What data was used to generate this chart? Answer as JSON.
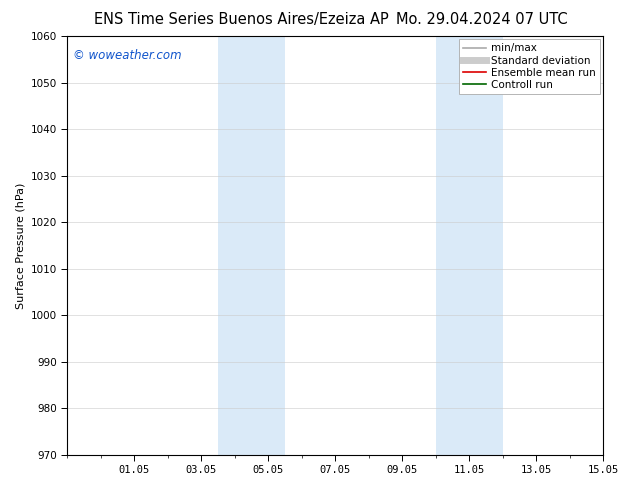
{
  "title_left": "ENS Time Series Buenos Aires/Ezeiza AP",
  "title_right": "Mo. 29.04.2024 07 UTC",
  "ylabel": "Surface Pressure (hPa)",
  "ylim": [
    970,
    1060
  ],
  "yticks": [
    970,
    980,
    990,
    1000,
    1010,
    1020,
    1030,
    1040,
    1050,
    1060
  ],
  "xlim": [
    0,
    16
  ],
  "xtick_labels": [
    "01.05",
    "03.05",
    "05.05",
    "07.05",
    "09.05",
    "11.05",
    "13.05",
    "15.05"
  ],
  "xtick_positions": [
    2,
    4,
    6,
    8,
    10,
    12,
    14,
    16
  ],
  "shaded_bands": [
    {
      "x_start": 4.5,
      "x_end": 6.5
    },
    {
      "x_start": 11.0,
      "x_end": 13.0
    }
  ],
  "shaded_color": "#daeaf8",
  "watermark_text": "© woweather.com",
  "watermark_color": "#1155cc",
  "legend_items": [
    {
      "label": "min/max",
      "color": "#aaaaaa",
      "lw": 1.2
    },
    {
      "label": "Standard deviation",
      "color": "#cccccc",
      "lw": 5
    },
    {
      "label": "Ensemble mean run",
      "color": "#dd0000",
      "lw": 1.2
    },
    {
      "label": "Controll run",
      "color": "#006600",
      "lw": 1.2
    }
  ],
  "bg_color": "#ffffff",
  "title_fontsize": 10.5,
  "watermark_fontsize": 8.5,
  "ylabel_fontsize": 8,
  "tick_fontsize": 7.5,
  "legend_fontsize": 7.5
}
